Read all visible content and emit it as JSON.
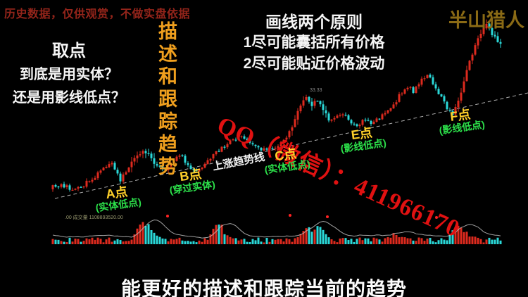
{
  "header": {
    "disclaimer": "历史数据，仅供观赏，不做实盘依据",
    "brand": "半山猎人"
  },
  "titles": {
    "vertical": "描述和跟踪趋势",
    "principles": [
      "画线两个原则",
      "1尽可能囊括所有价格",
      "2尽可能贴近价格波动"
    ],
    "question": [
      "取点",
      "到底是用实体？",
      "还是用影线低点？"
    ],
    "watermark": "QQ（微信）：411966170",
    "bottom_caption": "能更好的描述和跟踪当前的趋势"
  },
  "chart_data": {
    "type": "candlestick",
    "axes_visible": false,
    "grid": false,
    "trendline_label": "上涨趋势线",
    "volume_text": ".00 成交量 1108893520.00",
    "peak_price_label": "33.33",
    "points": [
      {
        "label": "A点",
        "note": "(实体低点)"
      },
      {
        "label": "B点",
        "note": "(穿过实体)"
      },
      {
        "label": "C点",
        "note": "(实体低点)"
      },
      {
        "label": "E点",
        "note": "(影线低点)"
      },
      {
        "label": "F点",
        "note": "(影线低点)"
      }
    ],
    "x_range": [
      75,
      712
    ],
    "candle_step": 4,
    "price_path": [
      [
        75,
        266
      ],
      [
        90,
        263
      ],
      [
        105,
        270
      ],
      [
        120,
        262
      ],
      [
        135,
        250
      ],
      [
        150,
        235
      ],
      [
        160,
        230
      ],
      [
        170,
        256
      ],
      [
        180,
        243
      ],
      [
        192,
        225
      ],
      [
        203,
        213
      ],
      [
        212,
        220
      ],
      [
        222,
        235
      ],
      [
        232,
        242
      ],
      [
        245,
        228
      ],
      [
        257,
        220
      ],
      [
        268,
        236
      ],
      [
        280,
        243
      ],
      [
        292,
        232
      ],
      [
        305,
        218
      ],
      [
        318,
        208
      ],
      [
        330,
        200
      ],
      [
        342,
        192
      ],
      [
        352,
        200
      ],
      [
        362,
        208
      ],
      [
        372,
        214
      ],
      [
        383,
        212
      ],
      [
        395,
        206
      ],
      [
        405,
        196
      ],
      [
        415,
        182
      ],
      [
        424,
        158
      ],
      [
        433,
        136
      ],
      [
        441,
        150
      ],
      [
        450,
        143
      ],
      [
        458,
        152
      ],
      [
        468,
        172
      ],
      [
        478,
        168
      ],
      [
        488,
        160
      ],
      [
        498,
        172
      ],
      [
        508,
        178
      ],
      [
        518,
        170
      ],
      [
        528,
        178
      ],
      [
        538,
        168
      ],
      [
        548,
        160
      ],
      [
        558,
        150
      ],
      [
        568,
        135
      ],
      [
        578,
        122
      ],
      [
        588,
        130
      ],
      [
        598,
        115
      ],
      [
        608,
        108
      ],
      [
        616,
        120
      ],
      [
        625,
        135
      ],
      [
        634,
        152
      ],
      [
        643,
        162
      ],
      [
        650,
        148
      ],
      [
        658,
        120
      ],
      [
        666,
        90
      ],
      [
        674,
        68
      ],
      [
        682,
        48
      ],
      [
        690,
        30
      ],
      [
        697,
        44
      ],
      [
        704,
        56
      ],
      [
        711,
        62
      ]
    ],
    "volatile_zones": [
      [
        185,
        222
      ],
      [
        415,
        470
      ],
      [
        645,
        715
      ]
    ],
    "trendline": {
      "x1": 78,
      "y1": 282,
      "x2": 750,
      "y2": 132
    },
    "volume_baseline": 347,
    "volume_spikes": [
      [
        200,
        20
      ],
      [
        213,
        14
      ],
      [
        310,
        24
      ],
      [
        435,
        14
      ],
      [
        452,
        18
      ],
      [
        560,
        8
      ],
      [
        648,
        16
      ],
      [
        662,
        10
      ]
    ],
    "signal_dots": [
      [
        238,
        307
      ],
      [
        412,
        306
      ],
      [
        465,
        308
      ],
      [
        620,
        309
      ]
    ],
    "colors": {
      "up": "#dd2a1e",
      "down": "#2ad8d8",
      "trendline": "#cccccc",
      "volume_ma": "#c8c8c8",
      "signal_dot": "#ff2222"
    }
  }
}
